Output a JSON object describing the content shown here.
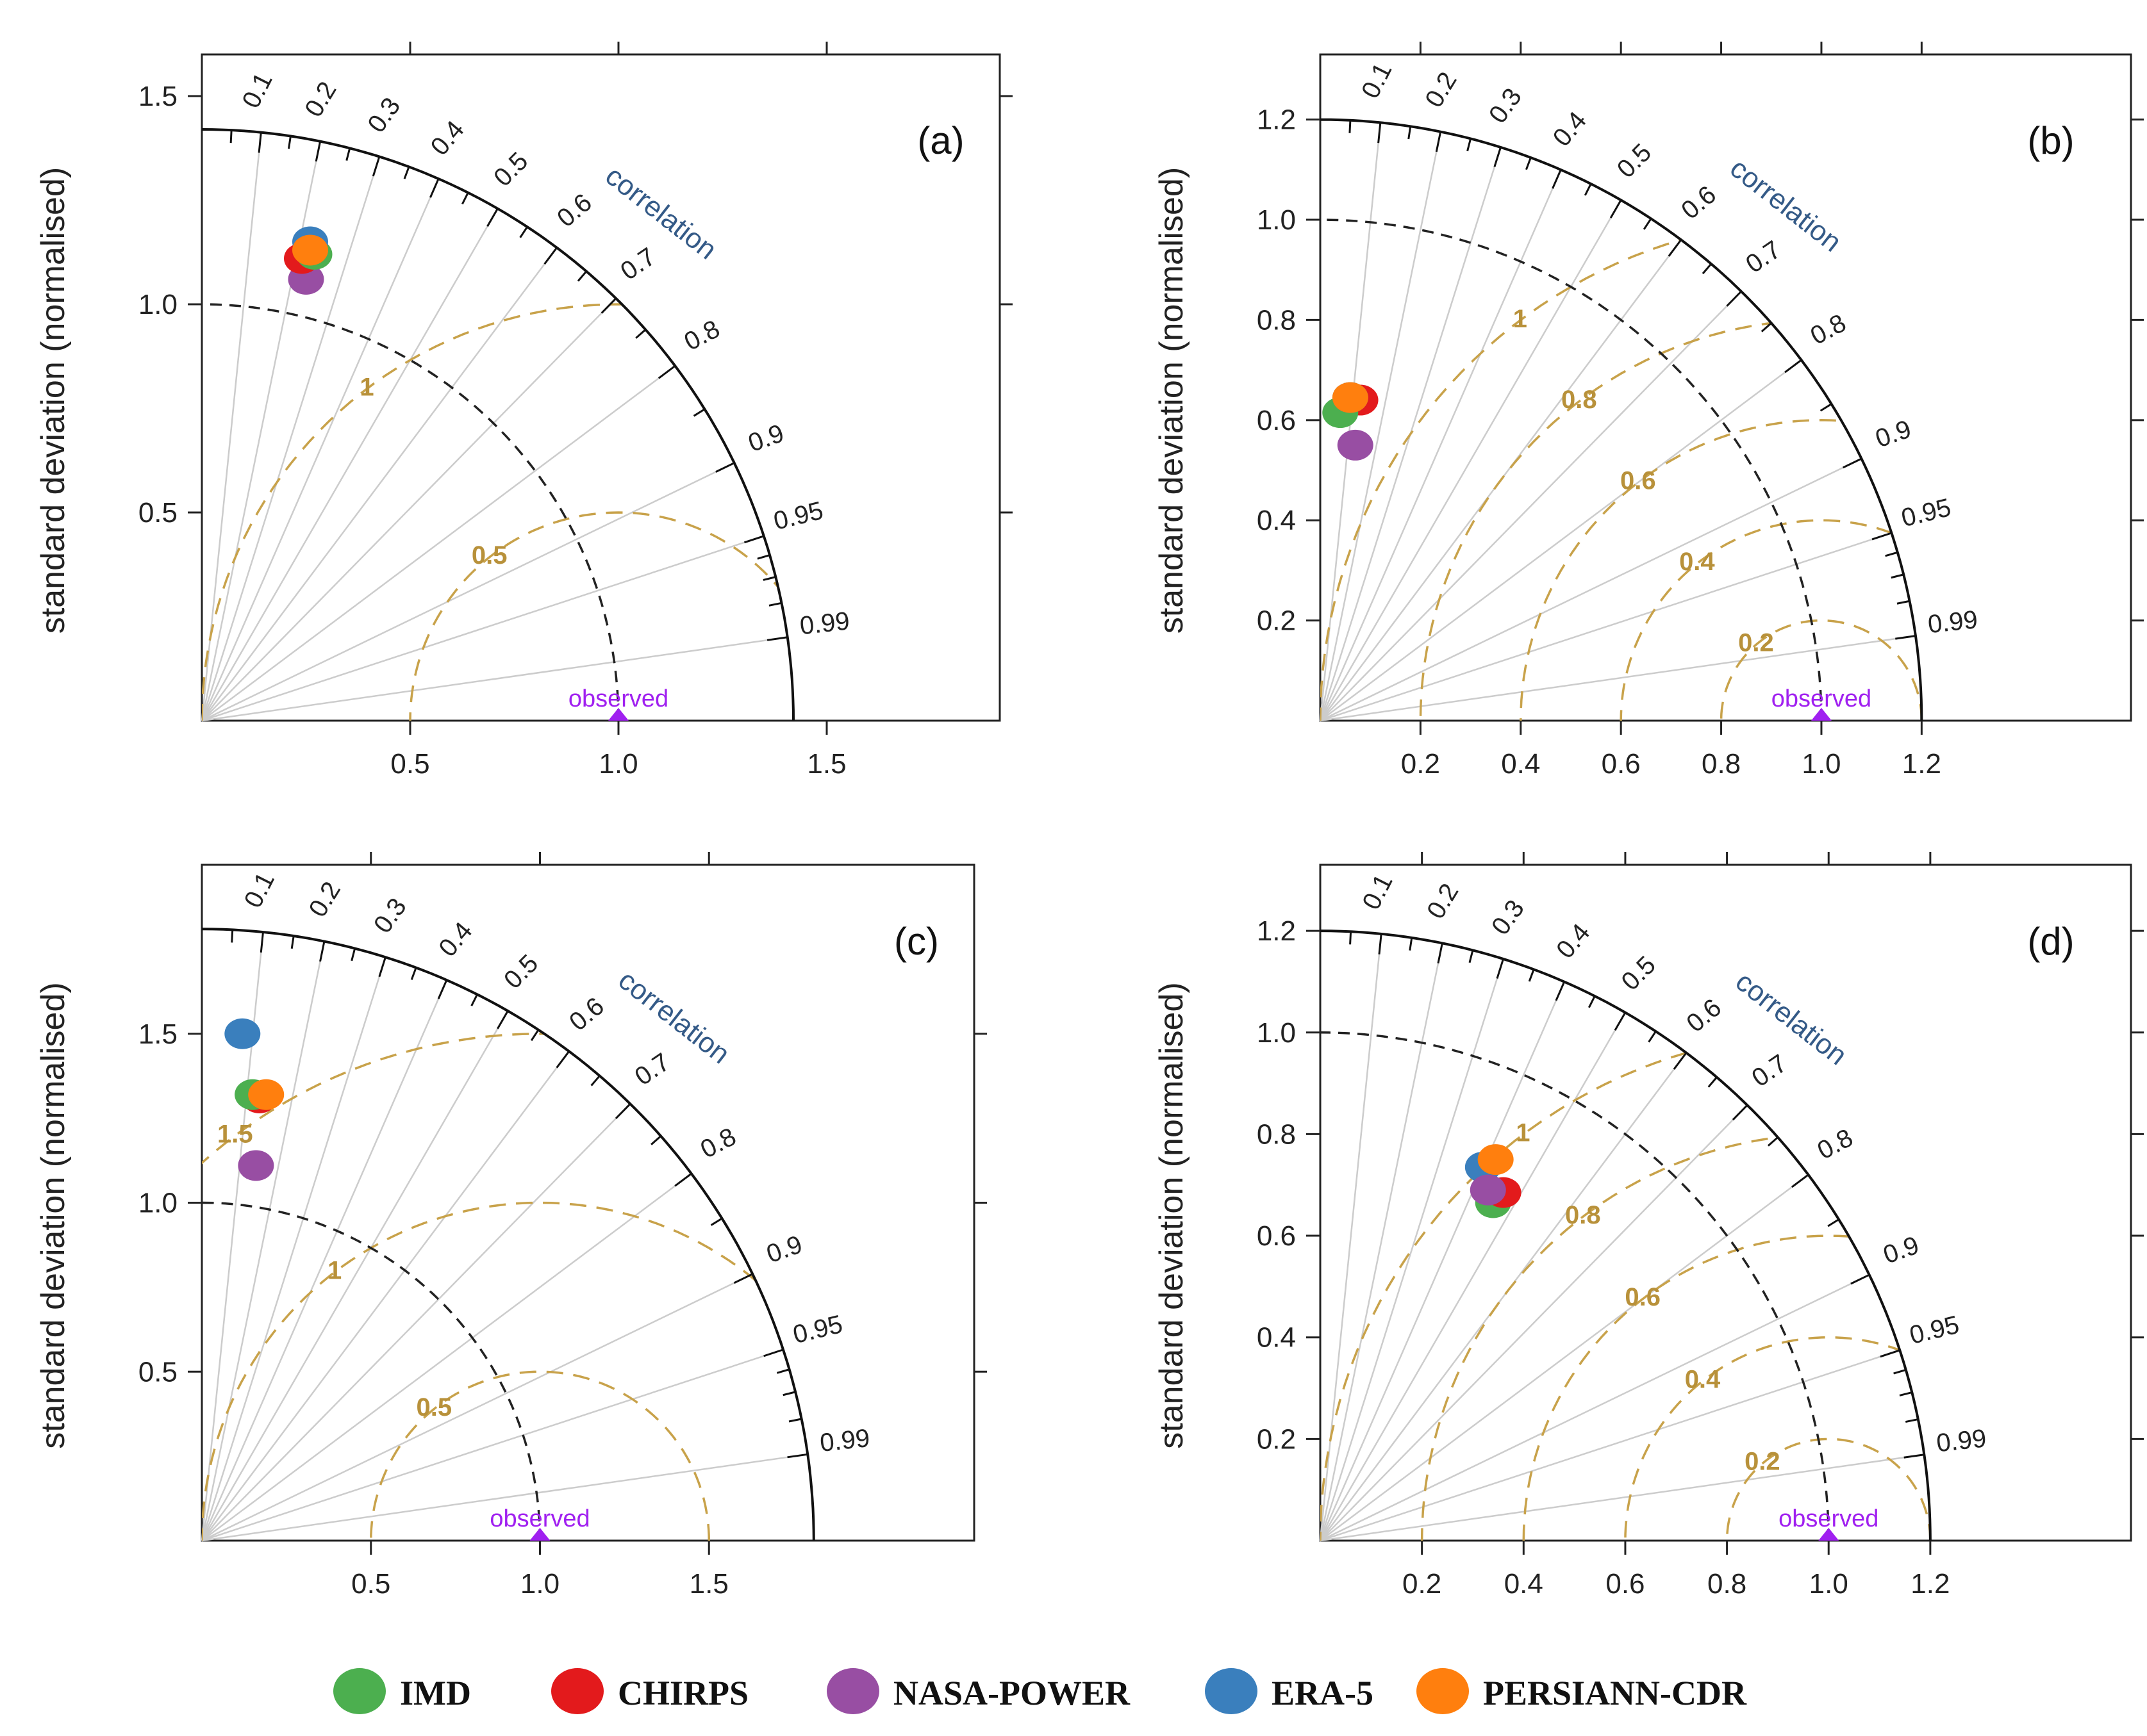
{
  "colors": {
    "IMD": "#4caf4f",
    "CHIRPS": "#e31a1c",
    "NASA-POWER": "#984ea3",
    "ERA-5": "#3a7fbd",
    "PERSIANN-CDR": "#ff7f0e",
    "observed": "#a020f0",
    "rms": "#c8a24a",
    "grid": "#cccccc",
    "axis": "#222222",
    "corr_text": "#345a87"
  },
  "axis_label": "standard deviation (normalised)",
  "correlation_title": "correlation",
  "observed_label": "observed",
  "legend": [
    {
      "name": "IMD",
      "color": "#4caf4f"
    },
    {
      "name": "CHIRPS",
      "color": "#e31a1c"
    },
    {
      "name": "NASA-POWER",
      "color": "#984ea3"
    },
    {
      "name": "ERA-5",
      "color": "#3a7fbd"
    },
    {
      "name": "PERSIANN-CDR",
      "color": "#ff7f0e"
    }
  ],
  "chart_data": [
    {
      "type": "taylor",
      "panel": "(a)",
      "axis_max": 1.6,
      "ticks": [
        "0.5",
        "1.0",
        "1.5"
      ],
      "tick_values": [
        0.5,
        1.0,
        1.5
      ],
      "sd_arc": 1.42,
      "rms_arcs": [
        {
          "value": 0.5,
          "label": "0.5"
        },
        {
          "value": 1,
          "label": "1"
        }
      ],
      "correlation_labels": [
        "0.1",
        "0.2",
        "0.3",
        "0.4",
        "0.5",
        "0.6",
        "0.7",
        "0.8",
        "0.9",
        "0.95",
        "0.99"
      ],
      "points": [
        {
          "model": "NASA-POWER",
          "x": 0.25,
          "y": 1.06
        },
        {
          "model": "CHIRPS",
          "x": 0.24,
          "y": 1.11
        },
        {
          "model": "IMD",
          "x": 0.27,
          "y": 1.12
        },
        {
          "model": "ERA-5",
          "x": 0.26,
          "y": 1.15
        },
        {
          "model": "PERSIANN-CDR",
          "x": 0.26,
          "y": 1.13
        }
      ]
    },
    {
      "type": "taylor",
      "panel": "(b)",
      "axis_max": 1.33,
      "ticks": [
        "0.2",
        "0.4",
        "0.6",
        "0.8",
        "1.0",
        "1.2"
      ],
      "tick_values": [
        0.2,
        0.4,
        0.6,
        0.8,
        1.0,
        1.2
      ],
      "sd_arc": 1.2,
      "rms_arcs": [
        {
          "value": 0.2,
          "label": "0.2"
        },
        {
          "value": 0.4,
          "label": "0.4"
        },
        {
          "value": 0.6,
          "label": "0.6"
        },
        {
          "value": 0.8,
          "label": "0.8"
        },
        {
          "value": 1,
          "label": "1"
        }
      ],
      "correlation_labels": [
        "0.1",
        "0.2",
        "0.3",
        "0.4",
        "0.5",
        "0.6",
        "0.7",
        "0.8",
        "0.9",
        "0.95",
        "0.99"
      ],
      "points": [
        {
          "model": "NASA-POWER",
          "x": 0.07,
          "y": 0.55
        },
        {
          "model": "CHIRPS",
          "x": 0.08,
          "y": 0.64
        },
        {
          "model": "IMD",
          "x": 0.04,
          "y": 0.615
        },
        {
          "model": "ERA-5",
          "x": 0.06,
          "y": 0.645
        },
        {
          "model": "PERSIANN-CDR",
          "x": 0.06,
          "y": 0.645
        }
      ]
    },
    {
      "type": "taylor",
      "panel": "(c)",
      "axis_max": 2.0,
      "ticks": [
        "0.5",
        "1.0",
        "1.5"
      ],
      "tick_values": [
        0.5,
        1.0,
        1.5
      ],
      "sd_arc": 1.81,
      "rms_arcs": [
        {
          "value": 0.5,
          "label": "0.5"
        },
        {
          "value": 1,
          "label": "1"
        },
        {
          "value": 1.5,
          "label": "1.5"
        }
      ],
      "correlation_labels": [
        "0.1",
        "0.2",
        "0.3",
        "0.4",
        "0.5",
        "0.6",
        "0.7",
        "0.8",
        "0.9",
        "0.95",
        "0.99"
      ],
      "points": [
        {
          "model": "ERA-5",
          "x": 0.12,
          "y": 1.5
        },
        {
          "model": "NASA-POWER",
          "x": 0.16,
          "y": 1.11
        },
        {
          "model": "CHIRPS",
          "x": 0.17,
          "y": 1.31
        },
        {
          "model": "IMD",
          "x": 0.15,
          "y": 1.32
        },
        {
          "model": "PERSIANN-CDR",
          "x": 0.19,
          "y": 1.32
        }
      ]
    },
    {
      "type": "taylor",
      "panel": "(d)",
      "axis_max": 1.33,
      "ticks": [
        "0.2",
        "0.4",
        "0.6",
        "0.8",
        "1.0",
        "1.2"
      ],
      "tick_values": [
        0.2,
        0.4,
        0.6,
        0.8,
        1.0,
        1.2
      ],
      "sd_arc": 1.2,
      "rms_arcs": [
        {
          "value": 0.2,
          "label": "0.2"
        },
        {
          "value": 0.4,
          "label": "0.4"
        },
        {
          "value": 0.6,
          "label": "0.6"
        },
        {
          "value": 0.8,
          "label": "0.8"
        },
        {
          "value": 1,
          "label": "1"
        }
      ],
      "correlation_labels": [
        "0.1",
        "0.2",
        "0.3",
        "0.4",
        "0.5",
        "0.6",
        "0.7",
        "0.8",
        "0.9",
        "0.95",
        "0.99"
      ],
      "points": [
        {
          "model": "ERA-5",
          "x": 0.32,
          "y": 0.735
        },
        {
          "model": "IMD",
          "x": 0.34,
          "y": 0.665
        },
        {
          "model": "CHIRPS",
          "x": 0.36,
          "y": 0.685
        },
        {
          "model": "NASA-POWER",
          "x": 0.33,
          "y": 0.69
        },
        {
          "model": "PERSIANN-CDR",
          "x": 0.345,
          "y": 0.75
        }
      ]
    }
  ]
}
